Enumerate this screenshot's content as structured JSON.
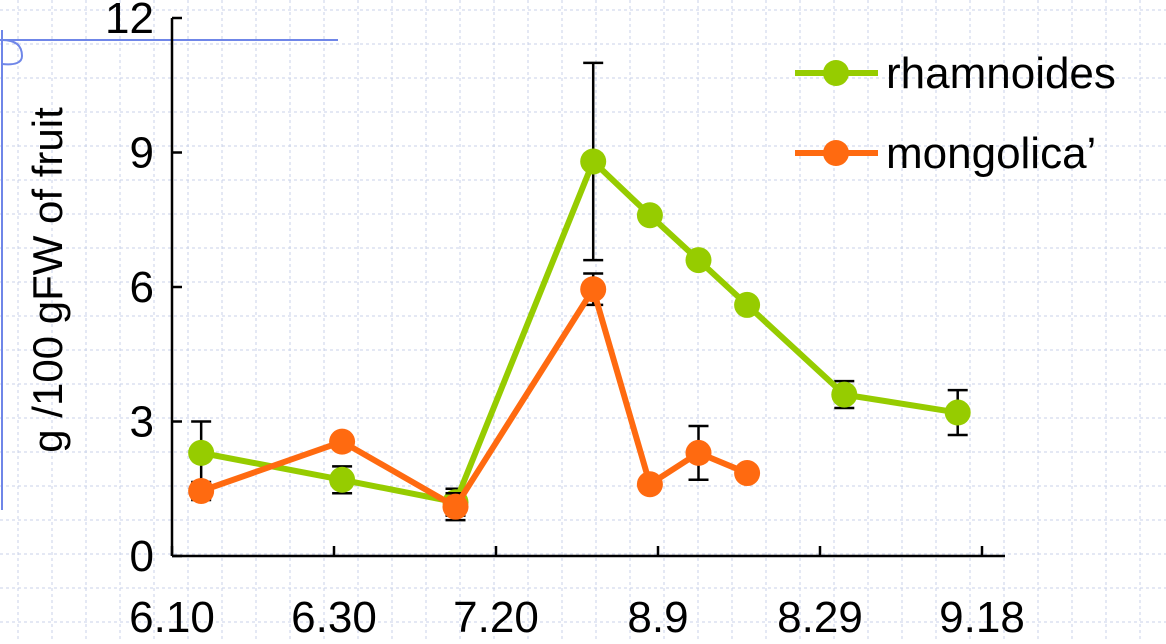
{
  "colors": {
    "background": "#ffffff",
    "grid": "#c8d2e8",
    "decor_line": "#6f86e8",
    "axis": "#000000",
    "rhamnoides": "#96cc00",
    "mongolica": "#ff6a10"
  },
  "chart_data": {
    "type": "line",
    "title": "",
    "xlabel": "",
    "ylabel": "g /100 gFW of fruit",
    "ylim": [
      0,
      12
    ],
    "yticks": [
      0,
      3,
      6,
      9,
      12
    ],
    "ytick_labels": [
      "0",
      "3",
      "6",
      "9",
      "12"
    ],
    "xlim": [
      0,
      100
    ],
    "xticks": [
      0,
      20,
      40,
      60,
      80,
      100
    ],
    "xtick_labels": [
      "6.10",
      "6.30",
      "7.20",
      "8.9",
      "8.29",
      "9.18"
    ],
    "grid": true,
    "legend_position": "top-right",
    "series": [
      {
        "name": "rhamnoides",
        "color": "#96cc00",
        "x": [
          3.6,
          21.0,
          35.0,
          52.0,
          59.0,
          65.0,
          71.0,
          83.0,
          97.0
        ],
        "y": [
          2.3,
          1.7,
          1.2,
          8.8,
          7.6,
          6.6,
          5.6,
          3.6,
          3.2
        ],
        "err": [
          0.7,
          0.3,
          0.3,
          2.2,
          0,
          0,
          0,
          0.3,
          0.5
        ]
      },
      {
        "name": "mongolica’",
        "color": "#ff6a10",
        "x": [
          3.6,
          21.0,
          35.0,
          52.0,
          59.0,
          65.0,
          71.0
        ],
        "y": [
          1.45,
          2.55,
          1.1,
          5.95,
          1.6,
          2.3,
          1.85
        ],
        "err": [
          0.2,
          0,
          0.3,
          0.35,
          0,
          0.6,
          0
        ]
      }
    ]
  }
}
